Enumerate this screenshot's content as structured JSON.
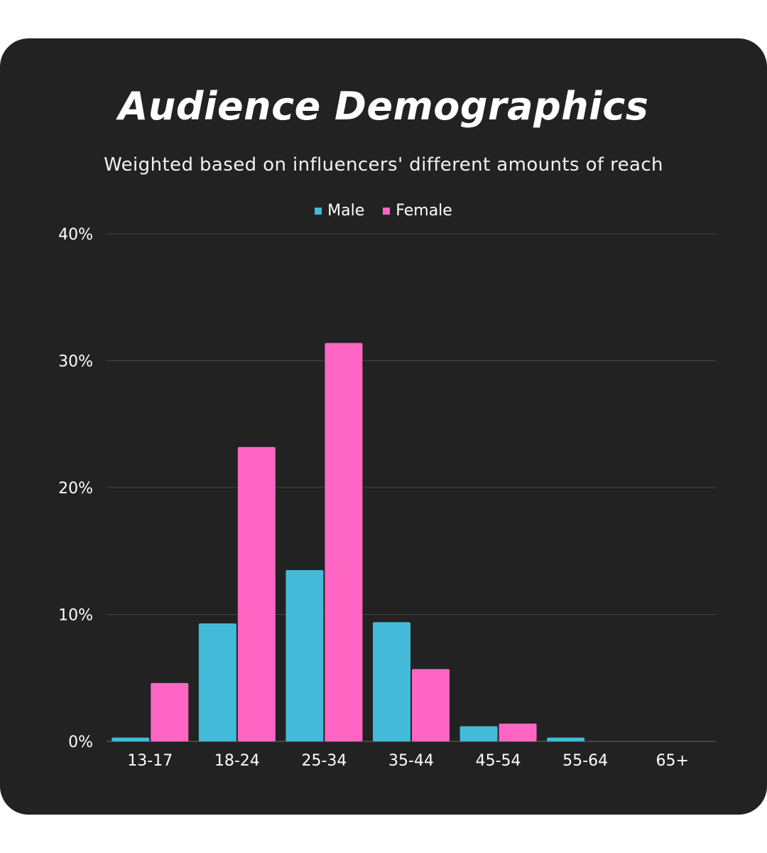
{
  "chart_data": {
    "type": "bar",
    "title": "Audience Demographics",
    "subtitle": "Weighted based on influencers' different amounts of reach",
    "categories": [
      "13-17",
      "18-24",
      "25-34",
      "35-44",
      "45-54",
      "55-64",
      "65+"
    ],
    "series": [
      {
        "name": "Male",
        "color": "#42BAD8",
        "values": [
          0.3,
          9.3,
          13.5,
          9.4,
          1.2,
          0.3,
          0
        ]
      },
      {
        "name": "Female",
        "color": "#FF66C4",
        "values": [
          4.6,
          23.2,
          31.4,
          5.7,
          1.4,
          0,
          0
        ]
      }
    ],
    "ylim": [
      0,
      40
    ],
    "yticks": [
      "0%",
      "10%",
      "20%",
      "30%",
      "40%"
    ],
    "ytick_values": [
      0,
      10,
      20,
      30,
      40
    ],
    "legend_position": "top-center",
    "grid": true
  }
}
